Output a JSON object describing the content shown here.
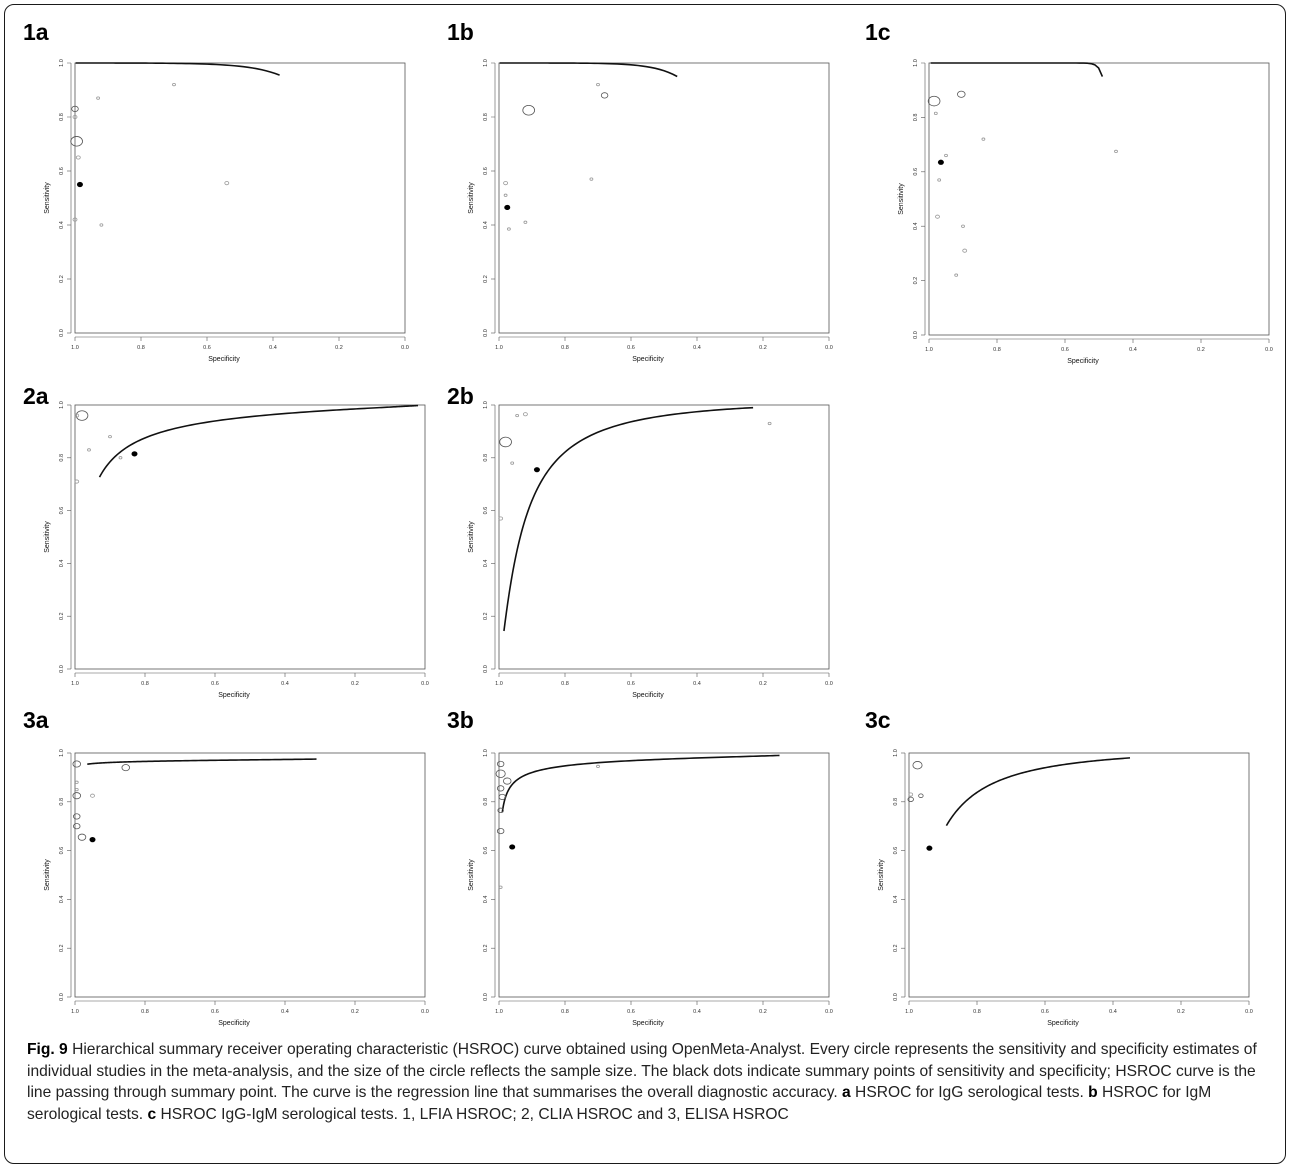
{
  "chart_data": [
    {
      "id": "1a",
      "type": "scatter",
      "panel_label": "1a",
      "xlabel": "Specificity",
      "ylabel": "Sensitivity",
      "xlim": [
        1.0,
        0.0
      ],
      "ylim": [
        0.0,
        1.0
      ],
      "xticks": [
        "1.0",
        "0.8",
        "0.6",
        "0.4",
        "0.2",
        "0.0"
      ],
      "yticks": [
        "0.0",
        "0.2",
        "0.4",
        "0.6",
        "0.8",
        "1.0"
      ],
      "grid": false,
      "summary_point": {
        "x": 0.985,
        "y": 0.55
      },
      "curve": {
        "x_start": 0.998,
        "x_end": 0.38,
        "y_start": 0.125,
        "y_end": 0.955
      },
      "studies": [
        {
          "x": 1.0,
          "y": 0.83,
          "size": 1
        },
        {
          "x": 1.0,
          "y": 0.8,
          "size": 0.5
        },
        {
          "x": 0.995,
          "y": 0.71,
          "size": 2
        },
        {
          "x": 0.99,
          "y": 0.65,
          "size": 0.5
        },
        {
          "x": 1.0,
          "y": 0.42,
          "size": 0.5
        },
        {
          "x": 0.92,
          "y": 0.4,
          "size": 0.3
        },
        {
          "x": 0.54,
          "y": 0.555,
          "size": 0.5
        },
        {
          "x": 0.7,
          "y": 0.92,
          "size": 0.3
        },
        {
          "x": 0.93,
          "y": 0.87,
          "size": 0.3
        }
      ]
    },
    {
      "id": "1b",
      "type": "scatter",
      "panel_label": "1b",
      "xlabel": "Specificity",
      "ylabel": "Sensitivity",
      "xlim": [
        1.0,
        0.0
      ],
      "ylim": [
        0.0,
        1.0
      ],
      "xticks": [
        "1.0",
        "0.8",
        "0.6",
        "0.4",
        "0.2",
        "0.0"
      ],
      "yticks": [
        "0.0",
        "0.2",
        "0.4",
        "0.6",
        "0.8",
        "1.0"
      ],
      "grid": false,
      "summary_point": {
        "x": 0.975,
        "y": 0.465
      },
      "curve": {
        "x_start": 0.998,
        "x_end": 0.46,
        "y_start": 0.05,
        "y_end": 0.95
      },
      "studies": [
        {
          "x": 0.91,
          "y": 0.825,
          "size": 2
        },
        {
          "x": 0.68,
          "y": 0.88,
          "size": 1
        },
        {
          "x": 0.98,
          "y": 0.555,
          "size": 0.5
        },
        {
          "x": 0.98,
          "y": 0.51,
          "size": 0.3
        },
        {
          "x": 0.97,
          "y": 0.385,
          "size": 0.3
        },
        {
          "x": 0.92,
          "y": 0.41,
          "size": 0.3
        },
        {
          "x": 0.72,
          "y": 0.57,
          "size": 0.3
        },
        {
          "x": 0.7,
          "y": 0.92,
          "size": 0.3
        }
      ]
    },
    {
      "id": "1c",
      "type": "scatter",
      "panel_label": "1c",
      "xlabel": "Specificity",
      "ylabel": "Sensitivity",
      "xlim": [
        1.0,
        0.0
      ],
      "ylim": [
        0.0,
        1.0
      ],
      "xticks": [
        "1.0",
        "0.8",
        "0.6",
        "0.4",
        "0.2",
        "0.0"
      ],
      "yticks": [
        "0.0",
        "0.2",
        "0.4",
        "0.6",
        "0.8",
        "1.0"
      ],
      "grid": false,
      "summary_point": {
        "x": 0.965,
        "y": 0.635
      },
      "curve": {
        "x_start": 0.995,
        "x_end": 0.49,
        "y_start": 0.23,
        "y_end": 0.95
      },
      "studies": [
        {
          "x": 0.985,
          "y": 0.86,
          "size": 2
        },
        {
          "x": 0.905,
          "y": 0.885,
          "size": 1.2
        },
        {
          "x": 0.98,
          "y": 0.815,
          "size": 0.3
        },
        {
          "x": 0.97,
          "y": 0.57,
          "size": 0.3
        },
        {
          "x": 0.975,
          "y": 0.435,
          "size": 0.5
        },
        {
          "x": 0.9,
          "y": 0.4,
          "size": 0.3
        },
        {
          "x": 0.895,
          "y": 0.31,
          "size": 0.5
        },
        {
          "x": 0.92,
          "y": 0.22,
          "size": 0.3
        },
        {
          "x": 0.45,
          "y": 0.675,
          "size": 0.3
        },
        {
          "x": 0.84,
          "y": 0.72,
          "size": 0.3
        },
        {
          "x": 0.95,
          "y": 0.66,
          "size": 0.3
        }
      ]
    },
    {
      "id": "2a",
      "type": "scatter",
      "panel_label": "2a",
      "xlabel": "Specificity",
      "ylabel": "Sensitivity",
      "xlim": [
        1.0,
        0.0
      ],
      "ylim": [
        0.0,
        1.0
      ],
      "xticks": [
        "1.0",
        "0.8",
        "0.6",
        "0.4",
        "0.2",
        "0.0"
      ],
      "yticks": [
        "0.0",
        "0.2",
        "0.4",
        "0.6",
        "0.8",
        "1.0"
      ],
      "grid": false,
      "summary_point": {
        "x": 0.83,
        "y": 0.815
      },
      "curve": {
        "x_start": 0.93,
        "x_end": 0.02,
        "y_start": 0.675,
        "y_end": 0.998
      },
      "studies": [
        {
          "x": 0.98,
          "y": 0.96,
          "size": 2
        },
        {
          "x": 0.995,
          "y": 0.96,
          "size": 0.5
        },
        {
          "x": 0.995,
          "y": 0.71,
          "size": 0.5
        },
        {
          "x": 0.96,
          "y": 0.83,
          "size": 0.3
        },
        {
          "x": 0.9,
          "y": 0.88,
          "size": 0.3
        },
        {
          "x": 0.87,
          "y": 0.8,
          "size": 0.3
        }
      ]
    },
    {
      "id": "2b",
      "type": "scatter",
      "panel_label": "2b",
      "xlabel": "Specificity",
      "ylabel": "Sensitivity",
      "xlim": [
        1.0,
        0.0
      ],
      "ylim": [
        0.0,
        1.0
      ],
      "xticks": [
        "1.0",
        "0.8",
        "0.6",
        "0.4",
        "0.2",
        "0.0"
      ],
      "yticks": [
        "0.0",
        "0.2",
        "0.4",
        "0.6",
        "0.8",
        "1.0"
      ],
      "grid": false,
      "summary_point": {
        "x": 0.885,
        "y": 0.755
      },
      "curve": {
        "x_start": 0.985,
        "x_end": 0.23,
        "y_start": 0.435,
        "y_end": 0.99
      },
      "studies": [
        {
          "x": 0.98,
          "y": 0.86,
          "size": 2
        },
        {
          "x": 0.92,
          "y": 0.965,
          "size": 0.5
        },
        {
          "x": 0.945,
          "y": 0.96,
          "size": 0.3
        },
        {
          "x": 0.995,
          "y": 0.57,
          "size": 0.5
        },
        {
          "x": 0.18,
          "y": 0.93,
          "size": 0.3
        },
        {
          "x": 0.96,
          "y": 0.78,
          "size": 0.3
        }
      ]
    },
    {
      "id": "3a",
      "type": "scatter",
      "panel_label": "3a",
      "xlabel": "Specificity",
      "ylabel": "Sensitivity",
      "xlim": [
        1.0,
        0.0
      ],
      "ylim": [
        0.0,
        1.0
      ],
      "xticks": [
        "1.0",
        "0.8",
        "0.6",
        "0.4",
        "0.2",
        "0.0"
      ],
      "yticks": [
        "0.0",
        "0.2",
        "0.4",
        "0.6",
        "0.8",
        "1.0"
      ],
      "grid": false,
      "summary_point": {
        "x": 0.95,
        "y": 0.645
      },
      "curve": {
        "x_start": 0.965,
        "x_end": 0.31,
        "y_start": 0.605,
        "y_end": 0.975
      },
      "studies": [
        {
          "x": 0.995,
          "y": 0.955,
          "size": 1.2
        },
        {
          "x": 0.995,
          "y": 0.88,
          "size": 0.3
        },
        {
          "x": 0.995,
          "y": 0.825,
          "size": 1.2
        },
        {
          "x": 0.995,
          "y": 0.74,
          "size": 1
        },
        {
          "x": 0.995,
          "y": 0.7,
          "size": 1
        },
        {
          "x": 0.98,
          "y": 0.655,
          "size": 1.2
        },
        {
          "x": 0.855,
          "y": 0.94,
          "size": 1.2
        },
        {
          "x": 0.95,
          "y": 0.825,
          "size": 0.5
        },
        {
          "x": 0.995,
          "y": 0.85,
          "size": 0.3
        }
      ]
    },
    {
      "id": "3b",
      "type": "scatter",
      "panel_label": "3b",
      "xlabel": "Specificity",
      "ylabel": "Sensitivity",
      "xlim": [
        1.0,
        0.0
      ],
      "ylim": [
        0.0,
        1.0
      ],
      "xticks": [
        "1.0",
        "0.8",
        "0.6",
        "0.4",
        "0.2",
        "0.0"
      ],
      "yticks": [
        "0.0",
        "0.2",
        "0.4",
        "0.6",
        "0.8",
        "1.0"
      ],
      "grid": false,
      "summary_point": {
        "x": 0.96,
        "y": 0.615
      },
      "curve": {
        "x_start": 0.99,
        "x_end": 0.15,
        "y_start": 0.42,
        "y_end": 0.99
      },
      "studies": [
        {
          "x": 0.995,
          "y": 0.955,
          "size": 1
        },
        {
          "x": 0.995,
          "y": 0.915,
          "size": 1.5
        },
        {
          "x": 0.995,
          "y": 0.855,
          "size": 1
        },
        {
          "x": 0.99,
          "y": 0.82,
          "size": 1
        },
        {
          "x": 0.995,
          "y": 0.765,
          "size": 0.8
        },
        {
          "x": 0.995,
          "y": 0.68,
          "size": 1
        },
        {
          "x": 0.975,
          "y": 0.885,
          "size": 1.2
        },
        {
          "x": 0.7,
          "y": 0.945,
          "size": 0.3
        },
        {
          "x": 0.995,
          "y": 0.45,
          "size": 0.3
        }
      ]
    },
    {
      "id": "3c",
      "type": "scatter",
      "panel_label": "3c",
      "xlabel": "Specificity",
      "ylabel": "Sensitivity",
      "xlim": [
        1.0,
        0.0
      ],
      "ylim": [
        0.0,
        1.0
      ],
      "xticks": [
        "1.0",
        "0.8",
        "0.6",
        "0.4",
        "0.2",
        "0.0"
      ],
      "yticks": [
        "0.0",
        "0.2",
        "0.4",
        "0.6",
        "0.8",
        "1.0"
      ],
      "grid": false,
      "summary_point": {
        "x": 0.94,
        "y": 0.61
      },
      "curve": {
        "x_start": 0.89,
        "x_end": 0.35,
        "y_start": 0.73,
        "y_end": 0.98
      },
      "studies": [
        {
          "x": 0.975,
          "y": 0.95,
          "size": 1.5
        },
        {
          "x": 0.995,
          "y": 0.81,
          "size": 0.8
        },
        {
          "x": 0.995,
          "y": 0.83,
          "size": 0.5
        },
        {
          "x": 0.965,
          "y": 0.825,
          "size": 0.6
        }
      ]
    }
  ],
  "caption": {
    "fig_label": "Fig. 9",
    "intro": " Hierarchical summary receiver operating characteristic (HSROC) curve obtained using OpenMeta-Analyst. Every circle represents the sensitivity and specificity estimates of individual studies in the meta-analysis, and the size of the circle reflects the sample size. The black dots indicate summary points of sensitivity and specificity; HSROC curve is the line passing through summary point. The curve is the regression line that summarises the overall diagnostic accuracy. ",
    "a_label": "a",
    "a_text": " HSROC for IgG serological tests. ",
    "b_label": "b",
    "b_text": " HSROC for IgM serological tests. ",
    "c_label": "c",
    "c_text": " HSROC IgG-IgM serological tests. 1, LFIA HSROC; 2, CLIA HSROC and 3, ELISA HSROC"
  }
}
